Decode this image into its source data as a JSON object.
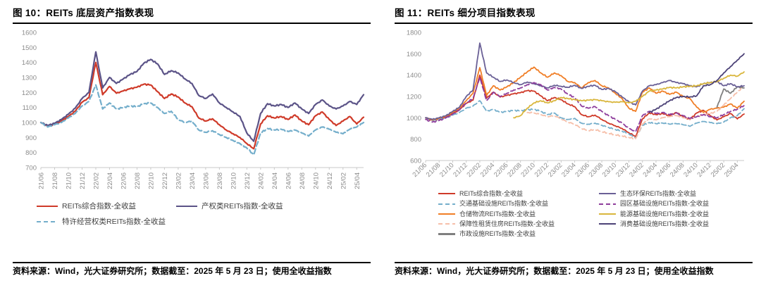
{
  "figure10": {
    "title": "图 10：REITs 底层资产指数表现",
    "source": "资料来源：Wind，光大证券研究所；数据截至：2025 年 5 月 23 日；使用全收益指数"
  },
  "figure11": {
    "title": "图 11：REITs 细分项目指数表现",
    "source": "资料来源：Wind，光大证券研究所；数据截至：2025 年 5 月 23 日；使用全收益指数"
  },
  "chart_data": [
    {
      "type": "line",
      "title": "REITs 底层资产指数表现",
      "xlabel": "",
      "ylabel": "",
      "grid": false,
      "legend_position": "bottom",
      "x_label_rotation": 90,
      "x_months_total": 48,
      "x_tick_labels": [
        "21/06",
        "21/08",
        "21/10",
        "21/12",
        "22/02",
        "22/04",
        "22/06",
        "22/08",
        "22/10",
        "22/12",
        "23/02",
        "23/04",
        "23/06",
        "23/08",
        "23/10",
        "23/12",
        "24/02",
        "24/04",
        "24/06",
        "24/08",
        "24/10",
        "24/12",
        "25/02",
        "25/04"
      ],
      "ylim": [
        700,
        1600
      ],
      "y_ticks": [
        700,
        800,
        900,
        1000,
        1100,
        1200,
        1300,
        1400,
        1500,
        1600
      ],
      "legend_sequence": [
        0,
        1,
        2
      ],
      "series": [
        {
          "name": "REITs综合指数-全收益",
          "color": "#CF3A29",
          "dash": false,
          "values": [
            1000,
            975,
            990,
            1010,
            1040,
            1075,
            1135,
            1165,
            1400,
            1185,
            1240,
            1195,
            1210,
            1225,
            1235,
            1255,
            1250,
            1205,
            1160,
            1190,
            1170,
            1130,
            1105,
            1030,
            1010,
            1025,
            985,
            950,
            925,
            900,
            860,
            825,
            990,
            1045,
            1030,
            1040,
            1020,
            1050,
            1010,
            985,
            1045,
            1070,
            1020,
            980,
            1010,
            1040,
            990,
            1035
          ]
        },
        {
          "name": "产权类REITs指数-全收益",
          "color": "#5B5387",
          "dash": false,
          "values": [
            1000,
            980,
            995,
            1020,
            1055,
            1095,
            1160,
            1200,
            1470,
            1230,
            1300,
            1260,
            1290,
            1320,
            1340,
            1395,
            1420,
            1390,
            1320,
            1345,
            1330,
            1290,
            1260,
            1180,
            1160,
            1190,
            1130,
            1100,
            1070,
            1040,
            930,
            875,
            1060,
            1125,
            1110,
            1120,
            1100,
            1130,
            1090,
            1060,
            1120,
            1150,
            1110,
            1090,
            1110,
            1140,
            1120,
            1185
          ]
        },
        {
          "name": "特许经营权类REITs指数-全收益",
          "color": "#74AECB",
          "dash": true,
          "values": [
            1000,
            970,
            985,
            1000,
            1030,
            1060,
            1110,
            1140,
            1250,
            1090,
            1130,
            1090,
            1100,
            1110,
            1105,
            1125,
            1130,
            1100,
            1060,
            1075,
            1020,
            1000,
            1010,
            950,
            935,
            945,
            920,
            900,
            880,
            860,
            830,
            785,
            930,
            960,
            950,
            955,
            940,
            950,
            930,
            910,
            950,
            970,
            955,
            935,
            925,
            955,
            970,
            1000
          ]
        }
      ]
    },
    {
      "type": "line",
      "title": "REITs 细分项目指数表现",
      "xlabel": "",
      "ylabel": "",
      "grid": false,
      "legend_position": "bottom",
      "x_label_rotation": 45,
      "x_months_total": 48,
      "x_tick_labels": [
        "21/06",
        "21/08",
        "21/10",
        "21/12",
        "22/02",
        "22/04",
        "22/06",
        "22/08",
        "22/10",
        "22/12",
        "23/02",
        "23/04",
        "23/06",
        "23/08",
        "23/10",
        "23/12",
        "24/02",
        "24/04",
        "24/06",
        "24/08",
        "24/10",
        "24/12",
        "25/02",
        "25/04"
      ],
      "ylim": [
        600,
        1800
      ],
      "y_ticks": [
        600,
        800,
        1000,
        1200,
        1400,
        1600,
        1800
      ],
      "legend_sequence": [
        0,
        5,
        1,
        6,
        2,
        7,
        3,
        8,
        4
      ],
      "series": [
        {
          "name": "REITs综合指数-全收益",
          "color": "#CF3A29",
          "dash": false,
          "values": [
            1000,
            975,
            990,
            1010,
            1040,
            1075,
            1135,
            1165,
            1400,
            1185,
            1240,
            1195,
            1210,
            1225,
            1235,
            1255,
            1250,
            1205,
            1160,
            1190,
            1170,
            1130,
            1105,
            1030,
            1010,
            1025,
            985,
            950,
            925,
            900,
            860,
            825,
            990,
            1045,
            1030,
            1040,
            1020,
            1050,
            1010,
            985,
            1045,
            1070,
            1020,
            980,
            1010,
            1040,
            990,
            1035
          ]
        },
        {
          "name": "交通基础设施REITs指数-全收益",
          "color": "#74AECB",
          "dash": true,
          "values": [
            1000,
            975,
            985,
            1000,
            1025,
            1050,
            1090,
            1110,
            1160,
            1060,
            1080,
            1050,
            1060,
            1070,
            1065,
            1075,
            1080,
            1060,
            1030,
            1045,
            1000,
            985,
            995,
            950,
            940,
            950,
            930,
            910,
            890,
            875,
            850,
            810,
            930,
            955,
            945,
            950,
            940,
            945,
            935,
            920,
            950,
            965,
            955,
            945,
            960,
            1000,
            1020,
            1085
          ]
        },
        {
          "name": "仓储物流REITs指数-全收益",
          "color": "#F07E26",
          "dash": false,
          "values": [
            1000,
            980,
            995,
            1015,
            1050,
            1090,
            1160,
            1230,
            1470,
            1210,
            1300,
            1260,
            1290,
            1330,
            1380,
            1430,
            1475,
            1420,
            1380,
            1420,
            1395,
            1340,
            1330,
            1280,
            1330,
            1350,
            1300,
            1280,
            1230,
            1180,
            1090,
            1060,
            1240,
            1280,
            1230,
            1250,
            1220,
            1240,
            1200,
            1180,
            1100,
            1050,
            1080,
            1090,
            1100,
            1130,
            1090,
            1155
          ]
        },
        {
          "name": "保障性租赁住房REITs指数-全收益",
          "color": "#F6BFA9",
          "dash": true,
          "values": [
            null,
            null,
            null,
            null,
            null,
            null,
            null,
            null,
            null,
            null,
            null,
            null,
            null,
            null,
            null,
            1050,
            1045,
            1030,
            1010,
            1020,
            990,
            960,
            940,
            900,
            880,
            890,
            870,
            855,
            840,
            830,
            815,
            805,
            940,
            990,
            980,
            1000,
            1010,
            1020,
            1000,
            990,
            1010,
            1030,
            1040,
            1060,
            1120,
            1180,
            1240,
            1300
          ]
        },
        {
          "name": "市政设施REITs指数-全收益",
          "color": "#7F7F7F",
          "dash": false,
          "values": [
            null,
            null,
            null,
            null,
            null,
            null,
            null,
            null,
            null,
            null,
            null,
            null,
            null,
            null,
            null,
            null,
            null,
            null,
            null,
            null,
            null,
            null,
            null,
            null,
            null,
            null,
            null,
            null,
            null,
            null,
            null,
            null,
            null,
            null,
            null,
            null,
            null,
            null,
            null,
            null,
            null,
            null,
            null,
            1100,
            1270,
            1230,
            1290,
            1280
          ]
        },
        {
          "name": "生态环保REITs指数-全收益",
          "color": "#6A6096",
          "dash": false,
          "values": [
            1000,
            985,
            1000,
            1020,
            1060,
            1100,
            1200,
            1260,
            1700,
            1420,
            1380,
            1340,
            1355,
            1330,
            1310,
            1335,
            1320,
            1300,
            1280,
            1305,
            1295,
            1285,
            1305,
            1275,
            1295,
            1305,
            1265,
            1275,
            1245,
            1195,
            1150,
            1120,
            1250,
            1300,
            1310,
            1330,
            1350,
            1330,
            1320,
            1300,
            1290,
            1320,
            1330,
            1340,
            1300,
            1320,
            1290,
            1300
          ]
        },
        {
          "name": "园区基础设施REITs指数-全收益",
          "color": "#8E3D9C",
          "dash": true,
          "values": [
            985,
            960,
            975,
            1000,
            1035,
            1075,
            1140,
            1180,
            1380,
            1160,
            1240,
            1200,
            1230,
            1260,
            1280,
            1310,
            1330,
            1310,
            1260,
            1285,
            1270,
            1220,
            1190,
            1110,
            1090,
            1105,
            1060,
            1020,
            985,
            950,
            900,
            870,
            1020,
            1060,
            1040,
            1050,
            1030,
            1045,
            1020,
            995,
            1010,
            1030,
            1010,
            1000,
            1030,
            1060,
            1080,
            1115
          ]
        },
        {
          "name": "能源基础设施REITs指数-全收益",
          "color": "#D9B63C",
          "dash": false,
          "values": [
            null,
            null,
            null,
            null,
            null,
            null,
            null,
            null,
            null,
            null,
            null,
            null,
            null,
            1000,
            1020,
            1090,
            1140,
            1160,
            1140,
            1160,
            1190,
            1180,
            1170,
            1160,
            1165,
            1170,
            1160,
            1150,
            1145,
            1150,
            1140,
            1155,
            1200,
            1250,
            1260,
            1270,
            1285,
            1280,
            1290,
            1295,
            1300,
            1320,
            1330,
            1340,
            1370,
            1400,
            1390,
            1430
          ]
        },
        {
          "name": "消费基础设施REITs指数-全收益",
          "color": "#4C4277",
          "dash": false,
          "values": [
            null,
            null,
            null,
            null,
            null,
            null,
            null,
            null,
            null,
            null,
            null,
            null,
            null,
            null,
            null,
            null,
            null,
            null,
            null,
            null,
            null,
            null,
            null,
            null,
            null,
            null,
            null,
            null,
            null,
            null,
            null,
            null,
            null,
            1050,
            1080,
            1120,
            1160,
            1190,
            1200,
            1195,
            1205,
            1300,
            1310,
            1350,
            1420,
            1480,
            1540,
            1600
          ]
        }
      ]
    }
  ]
}
